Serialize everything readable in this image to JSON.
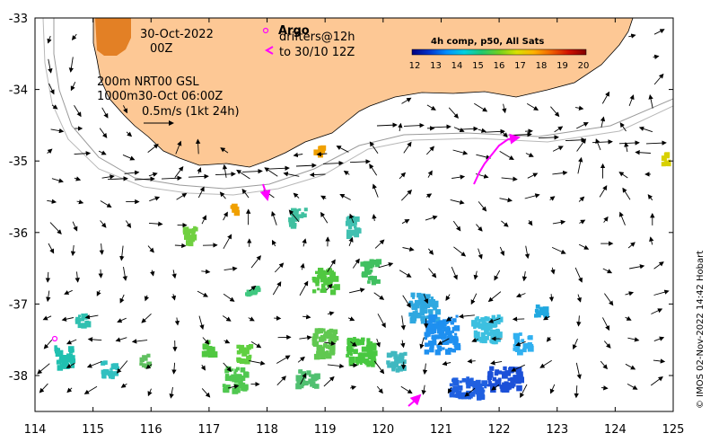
{
  "title": {
    "date": "30-Oct-2022",
    "time": "00Z"
  },
  "argo": {
    "label": "Argo",
    "drifters_line1": "drifters@12h",
    "drifters_line2": "to 30/10 12Z"
  },
  "contours": {
    "line1": "200m  NRT00 GSL",
    "line2": "1000m30-Oct 06:00Z",
    "scale_label": "0.5m/s (1kt 24h)"
  },
  "colorbar": {
    "title": "4h comp, p50, All Sats",
    "ticks": [
      "12",
      "13",
      "14",
      "15",
      "16",
      "17",
      "18",
      "19",
      "20"
    ],
    "colors": [
      "#00007f",
      "#0033cc",
      "#0090ff",
      "#00d0e0",
      "#20c870",
      "#70d020",
      "#d8e000",
      "#ffb000",
      "#f06000",
      "#d01000",
      "#800000"
    ]
  },
  "credit": "© IMOS 02-Nov-2022 14:42 Hobart",
  "axes": {
    "x_ticks": [
      "114",
      "115",
      "116",
      "117",
      "118",
      "119",
      "120",
      "121",
      "122",
      "123",
      "124",
      "125"
    ],
    "y_ticks": [
      "-33",
      "-34",
      "-35",
      "-36",
      "-37",
      "-38"
    ]
  },
  "colors": {
    "land": "#fdc895",
    "argo": "#ff00ff",
    "frame": "#000000"
  }
}
